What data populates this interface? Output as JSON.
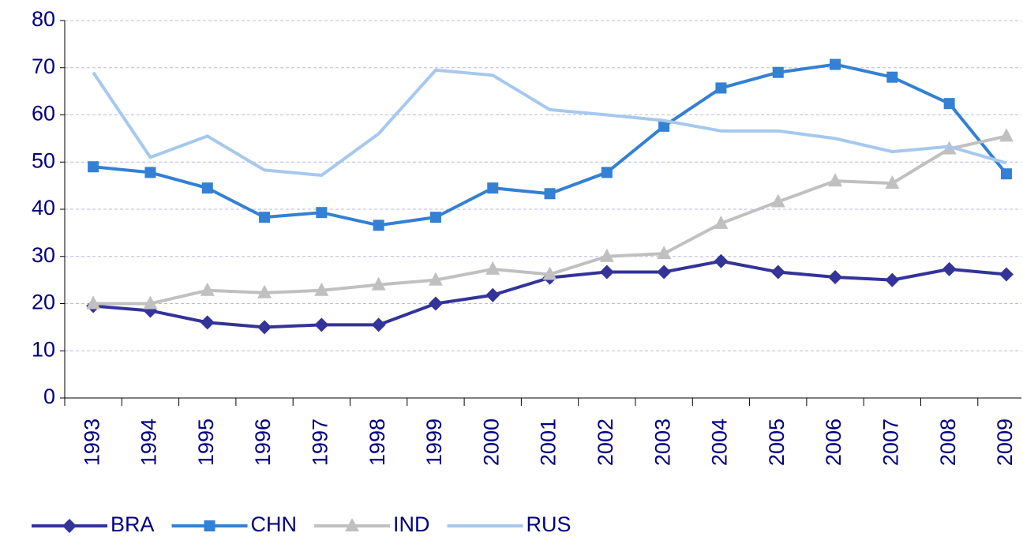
{
  "chart_data": {
    "type": "line",
    "categories": [
      "1993",
      "1994",
      "1995",
      "1996",
      "1997",
      "1998",
      "1999",
      "2000",
      "2001",
      "2002",
      "2003",
      "2004",
      "2005",
      "2006",
      "2007",
      "2008",
      "2009"
    ],
    "series": [
      {
        "name": "BRA",
        "color": "#333399",
        "marker": "diamond",
        "values": [
          19.5,
          18.5,
          16,
          15,
          15.5,
          15.5,
          20,
          21.8,
          25.5,
          26.7,
          26.7,
          29,
          26.7,
          25.6,
          25,
          27.3,
          26.2
        ]
      },
      {
        "name": "CHN",
        "color": "#3380d4",
        "marker": "square",
        "values": [
          49,
          47.8,
          44.5,
          38.3,
          39.3,
          36.6,
          38.3,
          44.5,
          43.3,
          47.8,
          57.6,
          65.7,
          69,
          70.7,
          68,
          62.4,
          47.5
        ]
      },
      {
        "name": "IND",
        "color": "#c0c0c0",
        "marker": "triangle",
        "values": [
          20,
          20,
          22.8,
          22.3,
          22.8,
          24,
          25,
          27.3,
          26.2,
          30,
          30.6,
          37,
          41.6,
          46,
          45.5,
          52.8,
          55.5
        ]
      },
      {
        "name": "RUS",
        "color": "#a6c8ee",
        "marker": "none",
        "values": [
          69,
          51,
          55.5,
          48.3,
          47.2,
          56,
          69.5,
          68.4,
          61.1,
          60,
          58.8,
          56.6,
          56.6,
          55,
          52.2,
          53.3,
          49.8
        ]
      }
    ],
    "ylim": [
      0,
      80
    ],
    "yticks": [
      0,
      10,
      20,
      30,
      40,
      50,
      60,
      70,
      80
    ],
    "grid": true,
    "legend": "bottom-left"
  }
}
